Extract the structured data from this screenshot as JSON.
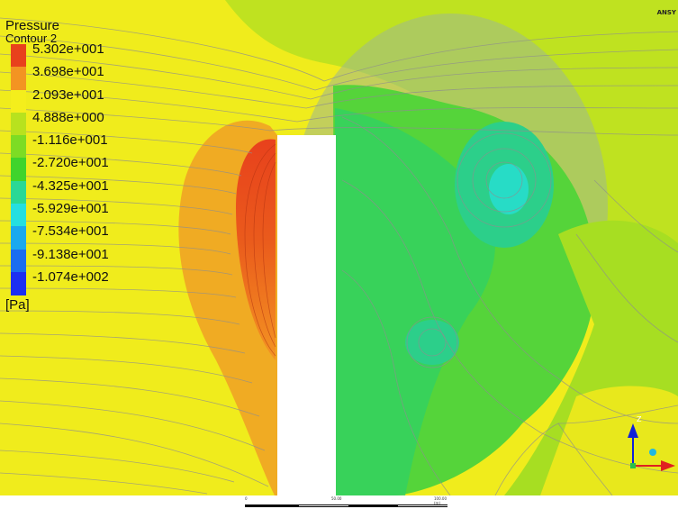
{
  "legend": {
    "title": "Pressure",
    "subtitle": "Contour 2",
    "unit": "[Pa]",
    "levels": [
      {
        "label": "5.302e+001",
        "color": "#e8411c"
      },
      {
        "label": "3.698e+001",
        "color": "#f39422"
      },
      {
        "label": "2.093e+001",
        "color": "#f4ee1c"
      },
      {
        "label": "4.888e+000",
        "color": "#b8e21e"
      },
      {
        "label": "-1.116e+001",
        "color": "#7ddc24"
      },
      {
        "label": "-2.720e+001",
        "color": "#3fd42c"
      },
      {
        "label": "-4.325e+001",
        "color": "#2ad895"
      },
      {
        "label": "-5.929e+001",
        "color": "#25dfe0"
      },
      {
        "label": "-7.534e+001",
        "color": "#1aa9ee"
      },
      {
        "label": "-9.138e+001",
        "color": "#1b6df0"
      },
      {
        "label": "-1.074e+002",
        "color": "#1d2ff2"
      }
    ]
  },
  "brand": "ANSY",
  "scale_bar": {
    "labels": [
      "0",
      "50.00",
      "100.00 (m)"
    ]
  },
  "axis_triad": {
    "vertical_label": "Z",
    "colors": {
      "z": "#1020d8",
      "x": "#e02020",
      "origin": "#2bc04a",
      "sphere": "#22b8e0"
    }
  }
}
